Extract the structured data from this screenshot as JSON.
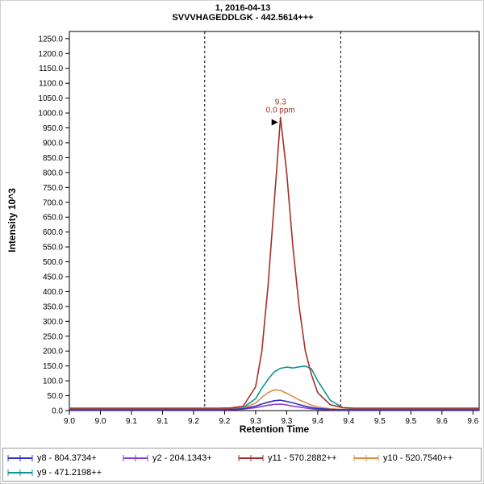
{
  "title": {
    "line1": "1, 2016-04-13",
    "line2": "SVVVHAGEDDLGK - 442.5614+++"
  },
  "axes": {
    "x_label": "Retention Time",
    "y_label": "Intensity 10^3"
  },
  "chart_data": {
    "type": "line",
    "title": "1, 2016-04-13",
    "subtitle": "SVVVHAGEDDLGK - 442.5614+++",
    "xlabel": "Retention Time",
    "ylabel": "Intensity 10^3",
    "xlim": [
      9.0,
      9.66
    ],
    "ylim": [
      0,
      1274
    ],
    "legend_position": "bottom",
    "grid": false,
    "x_ticks": {
      "values": [
        9.0,
        9.05,
        9.1,
        9.15,
        9.2,
        9.25,
        9.3,
        9.35,
        9.4,
        9.45,
        9.5,
        9.55,
        9.6,
        9.65
      ],
      "labels": [
        "9.0",
        "9.0",
        "9.1",
        "9.1",
        "9.2",
        "9.2",
        "9.3",
        "9.3",
        "9.4",
        "9.4",
        "9.5",
        "9.5",
        "9.6",
        "9.6"
      ]
    },
    "y_ticks": {
      "step": 50,
      "min": 0,
      "max": 1250,
      "labels": [
        "0.0",
        "50.0",
        "100.0",
        "150.0",
        "200.0",
        "250.0",
        "300.0",
        "350.0",
        "400.0",
        "450.0",
        "500.0",
        "550.0",
        "600.0",
        "650.0",
        "700.0",
        "750.0",
        "800.0",
        "850.0",
        "900.0",
        "950.0",
        "1000.0",
        "1050.0",
        "1100.0",
        "1150.0",
        "1200.0",
        "1250.0"
      ]
    },
    "integration_boundaries": [
      9.218,
      9.437
    ],
    "annotation": {
      "x": 9.34,
      "y": 985,
      "line1": "9.3",
      "line2": "0.0 ppm",
      "color": "#a33028"
    },
    "x": [
      9.0,
      9.05,
      9.1,
      9.15,
      9.2,
      9.24,
      9.26,
      9.28,
      9.3,
      9.31,
      9.32,
      9.33,
      9.34,
      9.35,
      9.36,
      9.37,
      9.38,
      9.39,
      9.4,
      9.42,
      9.44,
      9.46,
      9.5,
      9.55,
      9.6,
      9.66
    ],
    "series": [
      {
        "name": "y8",
        "legend_label": "y8 - 804.3734+",
        "color": "#2f2fc4",
        "values": [
          3,
          3,
          3,
          3,
          3,
          3,
          4,
          6,
          15,
          22,
          28,
          33,
          35,
          31,
          26,
          20,
          15,
          10,
          7,
          4,
          3,
          3,
          3,
          3,
          3,
          3
        ]
      },
      {
        "name": "y2",
        "legend_label": "y2 - 204.1343+",
        "color": "#8a3fd1",
        "values": [
          2,
          2,
          2,
          2,
          2,
          2,
          3,
          5,
          10,
          14,
          18,
          21,
          22,
          19,
          15,
          12,
          9,
          6,
          4,
          3,
          2,
          2,
          2,
          2,
          2,
          2
        ]
      },
      {
        "name": "y11",
        "legend_label": "y11 - 570.2882++",
        "color": "#a33028",
        "values": [
          8,
          8,
          8,
          8,
          8,
          8,
          9,
          15,
          80,
          200,
          420,
          700,
          985,
          800,
          550,
          350,
          200,
          120,
          60,
          20,
          10,
          8,
          8,
          8,
          8,
          8
        ]
      },
      {
        "name": "y10",
        "legend_label": "y10 - 520.7540++",
        "color": "#d78d46",
        "values": [
          4,
          4,
          4,
          4,
          4,
          4,
          5,
          8,
          25,
          45,
          60,
          70,
          68,
          58,
          47,
          36,
          27,
          18,
          12,
          6,
          4,
          4,
          4,
          4,
          4,
          4
        ]
      },
      {
        "name": "y9",
        "legend_label": "y9 - 471.2198++",
        "color": "#0e9494",
        "values": [
          5,
          5,
          5,
          5,
          5,
          5,
          6,
          10,
          40,
          75,
          105,
          130,
          142,
          146,
          143,
          147,
          150,
          140,
          100,
          35,
          10,
          6,
          5,
          5,
          5,
          5
        ]
      }
    ]
  }
}
